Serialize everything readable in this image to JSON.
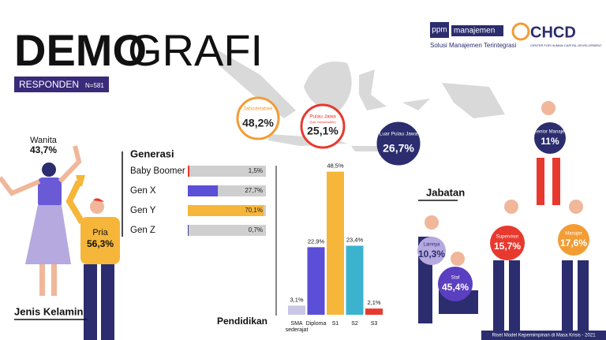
{
  "header": {
    "title_bold": "DEMO",
    "title_light": "GRAFI",
    "subtitle": "RESPONDEN",
    "sample": "N=581"
  },
  "logos": {
    "ppm_mark": "ppm",
    "ppm_name": "manajemen",
    "ppm_tagline": "Solusi Manajemen Terintegrasi",
    "chcd": "CHCD",
    "chcd_tagline": "CENTER FOR HUMAN CAPITAL DEVELOPMENT"
  },
  "map": [
    {
      "label": "Jabodetabek",
      "value": "48,2%",
      "color": "#f39c34"
    },
    {
      "label": "Pulau Jawa",
      "note": "(luar Jabodetabek)",
      "value": "25,1%",
      "color": "#e8392f"
    },
    {
      "label": "Luar Pulau Jawa",
      "value": "26,7%",
      "color": "#2b2d6e"
    }
  ],
  "gender": {
    "title": "Jenis Kelamin",
    "items": [
      {
        "label": "Wanita",
        "value": "43,7%"
      },
      {
        "label": "Pria",
        "value": "56,3%"
      }
    ]
  },
  "jabatan": {
    "title": "Jabatan",
    "items": [
      {
        "label": "Senior Manajer",
        "value": "11%",
        "color": "#2b2d6e"
      },
      {
        "label": "Lainnya",
        "value": "10,3%",
        "color": "#b5a9e0"
      },
      {
        "label": "Supervisor",
        "value": "15,7%",
        "color": "#e8392f"
      },
      {
        "label": "Manajer",
        "value": "17,6%",
        "color": "#f39c34"
      },
      {
        "label": "Staf",
        "value": "45,4%",
        "color": "#5a3fc0"
      }
    ]
  },
  "chart_data": [
    {
      "type": "hbar",
      "title": "Generasi",
      "categories": [
        "Baby Boomer",
        "Gen X",
        "Gen Y",
        "Gen Z"
      ],
      "values": [
        1.5,
        27.7,
        70.1,
        0.7
      ],
      "value_labels": [
        "1,5%",
        "27,7%",
        "70,1%",
        "0,7%"
      ],
      "colors": [
        "#e8392f",
        "#5a4fd6",
        "#f6b63a",
        "#3b3b8f"
      ],
      "xlim": [
        0,
        72
      ]
    },
    {
      "type": "bar",
      "title": "Pendidikan",
      "categories": [
        "SMA sederajat",
        "Diploma",
        "S1",
        "S2",
        "S3"
      ],
      "values": [
        3.1,
        22.9,
        48.5,
        23.4,
        2.1
      ],
      "value_labels": [
        "3,1%",
        "22,9%",
        "48,5%",
        "23,4%",
        "2,1%"
      ],
      "colors": [
        "#c9c6e6",
        "#5a4fd6",
        "#f6b63a",
        "#3bb3cf",
        "#e8392f"
      ],
      "ylim": [
        0,
        50
      ]
    }
  ],
  "footer": "Riset Model Kepemimpinan di Masa Krisis - 2021"
}
